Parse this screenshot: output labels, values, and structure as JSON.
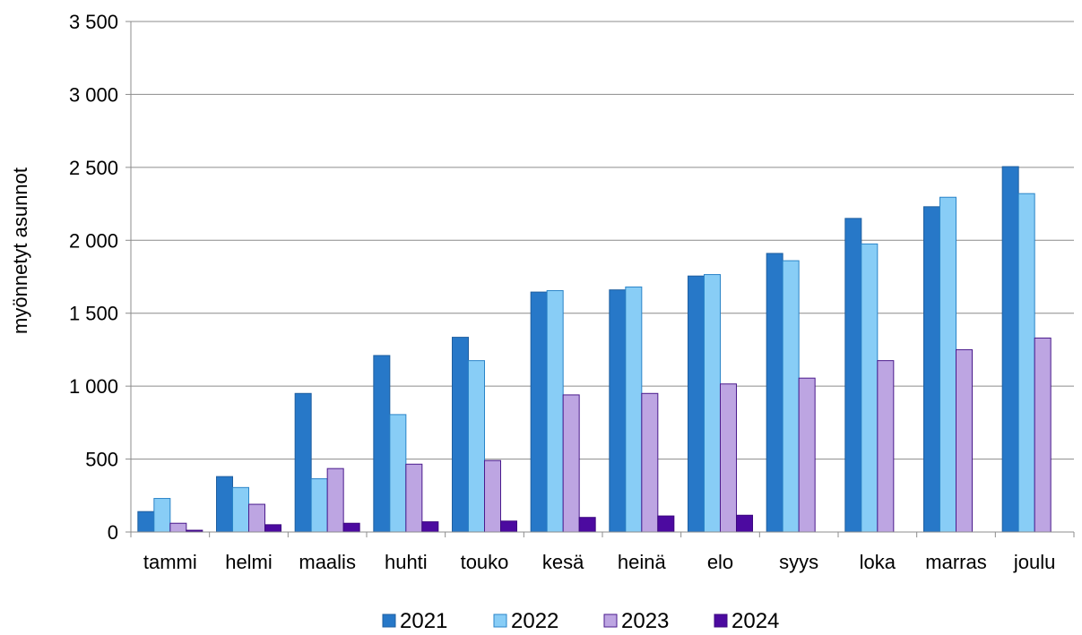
{
  "chart_data": {
    "type": "bar",
    "title": "",
    "xlabel": "",
    "ylabel": "myönnetyt asunnot",
    "ylim": [
      0,
      3500
    ],
    "y_ticks": [
      0,
      500,
      1000,
      1500,
      2000,
      2500,
      3000,
      3500
    ],
    "y_tick_labels": [
      "0",
      "500",
      "1 000",
      "1 500",
      "2 000",
      "2 500",
      "3 000",
      "3 500"
    ],
    "grid": true,
    "legend_position": "bottom",
    "categories": [
      "tammi",
      "helmi",
      "maalis",
      "huhti",
      "touko",
      "kesä",
      "heinä",
      "elo",
      "syys",
      "loka",
      "marras",
      "joulu"
    ],
    "series": [
      {
        "name": "2021",
        "color": "#2778c8",
        "stroke": "#1f5fa0",
        "values": [
          140,
          380,
          950,
          1210,
          1335,
          1645,
          1660,
          1755,
          1910,
          2150,
          2230,
          2505
        ]
      },
      {
        "name": "2022",
        "color": "#88cdf6",
        "stroke": "#2a84c8",
        "values": [
          230,
          305,
          365,
          805,
          1175,
          1655,
          1680,
          1765,
          1860,
          1975,
          2295,
          2320
        ]
      },
      {
        "name": "2023",
        "color": "#bda5e2",
        "stroke": "#4a1a8c",
        "values": [
          60,
          190,
          435,
          465,
          490,
          940,
          950,
          1015,
          1055,
          1175,
          1250,
          1330
        ]
      },
      {
        "name": "2024",
        "color": "#4c0aa0",
        "stroke": "#3c0880",
        "values": [
          12,
          50,
          60,
          70,
          75,
          100,
          110,
          115,
          null,
          null,
          null,
          null
        ]
      }
    ]
  }
}
